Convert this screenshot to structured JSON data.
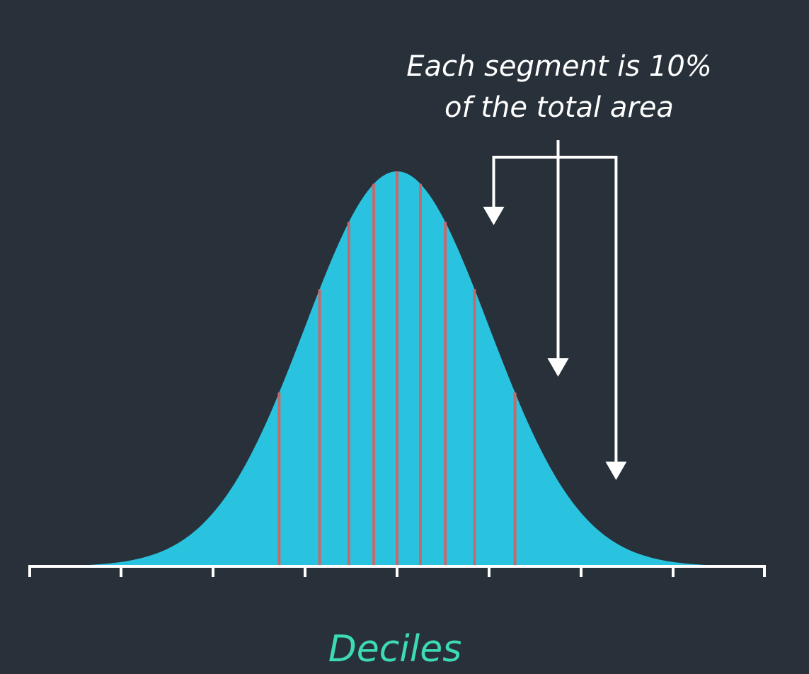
{
  "annotation": {
    "line1": "Each segment is 10%",
    "line2": "of the total area"
  },
  "footer": {
    "label": "Deciles"
  },
  "distribution": {
    "type": "normal",
    "mean": 0,
    "sd": 1,
    "x_range": [
      -3.8,
      3.8
    ],
    "decile_cuts": [
      -1.2816,
      -0.8416,
      -0.5244,
      -0.2533,
      0,
      0.2533,
      0.5244,
      0.8416,
      1.2816
    ],
    "axis_ticks": [
      -4,
      -3,
      -2,
      -1,
      0,
      1,
      2,
      3,
      4
    ],
    "arrow_targets": [
      1.05,
      1.75,
      2.38
    ]
  },
  "colors": {
    "background": "#28313a",
    "curve_fill": "#29c3e0",
    "decile_line": "#c46a6c",
    "axis": "#ffffff",
    "annotation": "#ffffff",
    "footer_label": "#3ddbb4"
  }
}
